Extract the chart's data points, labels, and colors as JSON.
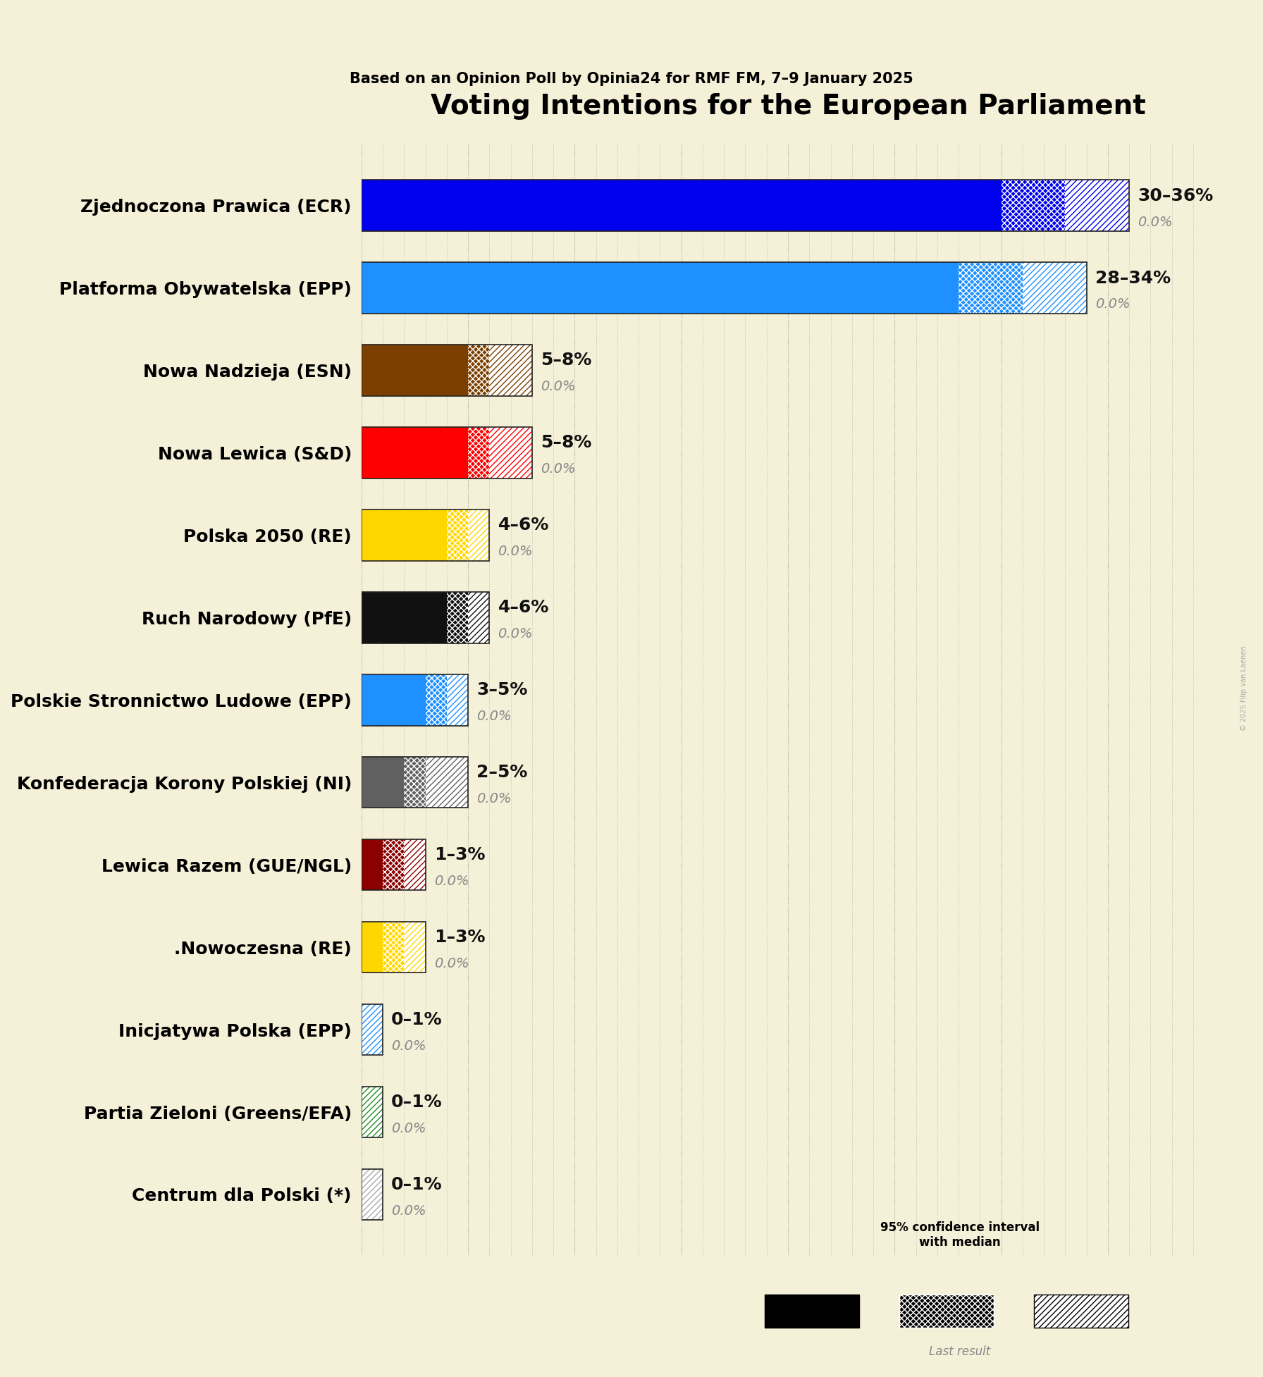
{
  "title": "Voting Intentions for the European Parliament",
  "subtitle": "Based on an Opinion Poll by Opinia24 for RMF FM, 7–9 January 2025",
  "copyright": "© 2025 Filip van Laenen",
  "background_color": "#f5f0d8",
  "parties": [
    {
      "name": "Zjednoczona Prawica (ECR)",
      "low": 30,
      "high": 36,
      "median": 33,
      "last": 0.0,
      "color": "#0000ee"
    },
    {
      "name": "Platforma Obywatelska (EPP)",
      "low": 28,
      "high": 34,
      "median": 31,
      "last": 0.0,
      "color": "#1e90ff"
    },
    {
      "name": "Nowa Nadzieja (ESN)",
      "low": 5,
      "high": 8,
      "median": 6,
      "last": 0.0,
      "color": "#7b3f00"
    },
    {
      "name": "Nowa Lewica (S&D)",
      "low": 5,
      "high": 8,
      "median": 6,
      "last": 0.0,
      "color": "#ff0000"
    },
    {
      "name": "Polska 2050 (RE)",
      "low": 4,
      "high": 6,
      "median": 5,
      "last": 0.0,
      "color": "#ffd700"
    },
    {
      "name": "Ruch Narodowy (PfE)",
      "low": 4,
      "high": 6,
      "median": 5,
      "last": 0.0,
      "color": "#111111"
    },
    {
      "name": "Polskie Stronnictwo Ludowe (EPP)",
      "low": 3,
      "high": 5,
      "median": 4,
      "last": 0.0,
      "color": "#1e90ff"
    },
    {
      "name": "Konfederacja Korony Polskiej (NI)",
      "low": 2,
      "high": 5,
      "median": 3,
      "last": 0.0,
      "color": "#606060"
    },
    {
      "name": "Lewica Razem (GUE/NGL)",
      "low": 1,
      "high": 3,
      "median": 2,
      "last": 0.0,
      "color": "#8b0000"
    },
    {
      "name": ".Nowoczesna (RE)",
      "low": 1,
      "high": 3,
      "median": 2,
      "last": 0.0,
      "color": "#ffd700"
    },
    {
      "name": "Inicjatywa Polska (EPP)",
      "low": 0,
      "high": 1,
      "median": 0,
      "last": 0.0,
      "color": "#1e90ff"
    },
    {
      "name": "Partia Zieloni (Greens/EFA)",
      "low": 0,
      "high": 1,
      "median": 0,
      "last": 0.0,
      "color": "#228b22"
    },
    {
      "name": "Centrum dla Polski (*)",
      "low": 0,
      "high": 1,
      "median": 0,
      "last": 0.0,
      "color": "#aaaaaa"
    }
  ],
  "xlim_max": 40,
  "label_color": "#888888",
  "range_fontsize": 18,
  "last_fontsize": 14,
  "party_fontsize": 18,
  "title_fontsize": 28,
  "subtitle_fontsize": 15
}
